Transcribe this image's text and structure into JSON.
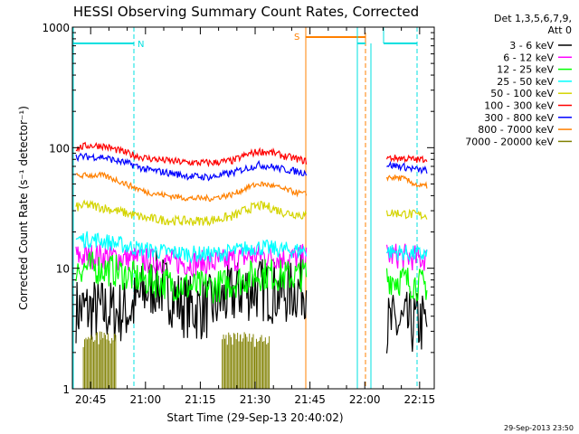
{
  "chart_data": {
    "type": "line",
    "title": "HESSI Observing Summary Count Rates, Corrected",
    "xlabel": "Start Time (29-Sep-13 20:40:02)",
    "ylabel": "Corrected Count Rate (s⁻¹ detector⁻¹)",
    "yscale": "log",
    "ylim": [
      1,
      1000
    ],
    "xlim_minutes": [
      40,
      139
    ],
    "x_ticks": [
      {
        "label": "20:45",
        "t": 45
      },
      {
        "label": "21:00",
        "t": 60
      },
      {
        "label": "21:15",
        "t": 75
      },
      {
        "label": "21:30",
        "t": 90
      },
      {
        "label": "21:45",
        "t": 105
      },
      {
        "label": "22:00",
        "t": 120
      },
      {
        "label": "22:15",
        "t": 135
      }
    ],
    "y_ticks": [
      {
        "label": "1",
        "v": 1
      },
      {
        "label": "10",
        "v": 10
      },
      {
        "label": "100",
        "v": 100
      },
      {
        "label": "1000",
        "v": 1000
      }
    ],
    "grid": false,
    "legend_position": "right",
    "legend_header": [
      "Det 1,3,5,6,7,9,",
      "Att 0"
    ],
    "data_gap_minutes": [
      104,
      126
    ],
    "series": [
      {
        "name": "3 - 6 keV",
        "color": "#000000",
        "points": [
          [
            41,
            4.5
          ],
          [
            47,
            4.5
          ],
          [
            52,
            4.3
          ],
          [
            56,
            4.5
          ],
          [
            60,
            6.5
          ],
          [
            63,
            7.5
          ],
          [
            66,
            6.5
          ],
          [
            70,
            5.0
          ],
          [
            74,
            4.6
          ],
          [
            78,
            4.8
          ],
          [
            82,
            5.6
          ],
          [
            86,
            6.5
          ],
          [
            90,
            6.8
          ],
          [
            94,
            6.5
          ],
          [
            98,
            6.2
          ],
          [
            102,
            6.8
          ],
          [
            104,
            7.3
          ],
          [
            126,
            3.3
          ],
          [
            130,
            3.4
          ],
          [
            135,
            3.5
          ],
          [
            137,
            3.5
          ]
        ]
      },
      {
        "name": "6 - 12 keV",
        "color": "#ff00ff",
        "points": [
          [
            41,
            12.5
          ],
          [
            47,
            12.6
          ],
          [
            52,
            12.4
          ],
          [
            56,
            12.0
          ],
          [
            60,
            11.6
          ],
          [
            66,
            11.4
          ],
          [
            72,
            11.0
          ],
          [
            78,
            11.0
          ],
          [
            82,
            11.4
          ],
          [
            86,
            12.2
          ],
          [
            90,
            12.8
          ],
          [
            94,
            12.6
          ],
          [
            98,
            12.2
          ],
          [
            102,
            12.3
          ],
          [
            104,
            12.4
          ],
          [
            126,
            12.8
          ],
          [
            130,
            12.6
          ],
          [
            135,
            12.0
          ],
          [
            137,
            12.0
          ]
        ]
      },
      {
        "name": "12 - 25 keV",
        "color": "#00ff00",
        "points": [
          [
            41,
            10.2
          ],
          [
            47,
            10.0
          ],
          [
            52,
            9.5
          ],
          [
            56,
            8.5
          ],
          [
            60,
            8.0
          ],
          [
            66,
            7.5
          ],
          [
            72,
            7.0
          ],
          [
            78,
            7.0
          ],
          [
            82,
            7.3
          ],
          [
            86,
            8.0
          ],
          [
            90,
            8.8
          ],
          [
            94,
            9.0
          ],
          [
            98,
            8.6
          ],
          [
            102,
            8.7
          ],
          [
            104,
            9.0
          ],
          [
            126,
            8.4
          ],
          [
            130,
            8.0
          ],
          [
            135,
            7.3
          ],
          [
            137,
            7.2
          ]
        ]
      },
      {
        "name": "25 - 50 keV",
        "color": "#00ffff",
        "points": [
          [
            41,
            17.5
          ],
          [
            47,
            17.2
          ],
          [
            52,
            16.0
          ],
          [
            56,
            15.0
          ],
          [
            60,
            14.2
          ],
          [
            66,
            13.6
          ],
          [
            72,
            13.2
          ],
          [
            78,
            13.0
          ],
          [
            82,
            13.4
          ],
          [
            86,
            14.2
          ],
          [
            90,
            15.0
          ],
          [
            94,
            14.6
          ],
          [
            98,
            14.2
          ],
          [
            102,
            14.0
          ],
          [
            104,
            14.2
          ],
          [
            126,
            13.8
          ],
          [
            130,
            13.5
          ],
          [
            135,
            13.0
          ],
          [
            137,
            13.0
          ]
        ]
      },
      {
        "name": "50 - 100 keV",
        "color": "#d4d400",
        "points": [
          [
            41,
            32
          ],
          [
            44,
            33.5
          ],
          [
            48,
            32
          ],
          [
            52,
            30
          ],
          [
            56,
            28
          ],
          [
            60,
            26
          ],
          [
            66,
            25
          ],
          [
            72,
            24.5
          ],
          [
            78,
            25
          ],
          [
            84,
            27
          ],
          [
            88,
            31
          ],
          [
            91,
            33
          ],
          [
            94,
            32
          ],
          [
            98,
            29
          ],
          [
            102,
            28
          ],
          [
            104,
            27
          ],
          [
            126,
            29
          ],
          [
            130,
            28.5
          ],
          [
            135,
            27.5
          ],
          [
            137,
            27.5
          ]
        ]
      },
      {
        "name": "100 - 300 keV",
        "color": "#ff0000",
        "points": [
          [
            41,
            98
          ],
          [
            44,
            104
          ],
          [
            48,
            104
          ],
          [
            52,
            96
          ],
          [
            56,
            88
          ],
          [
            60,
            82
          ],
          [
            66,
            78
          ],
          [
            72,
            75
          ],
          [
            78,
            75
          ],
          [
            84,
            78
          ],
          [
            88,
            88
          ],
          [
            91,
            93
          ],
          [
            94,
            92
          ],
          [
            98,
            85
          ],
          [
            102,
            80
          ],
          [
            104,
            77
          ],
          [
            126,
            82
          ],
          [
            130,
            82
          ],
          [
            135,
            79
          ],
          [
            137,
            82
          ]
        ]
      },
      {
        "name": "300 - 800 keV",
        "color": "#0000ff",
        "points": [
          [
            41,
            84
          ],
          [
            44,
            84
          ],
          [
            48,
            84
          ],
          [
            52,
            78
          ],
          [
            56,
            73
          ],
          [
            60,
            66
          ],
          [
            66,
            62
          ],
          [
            72,
            58
          ],
          [
            78,
            57
          ],
          [
            84,
            62
          ],
          [
            88,
            68
          ],
          [
            91,
            72
          ],
          [
            94,
            70
          ],
          [
            98,
            66
          ],
          [
            102,
            63
          ],
          [
            104,
            62
          ],
          [
            126,
            72
          ],
          [
            130,
            70
          ],
          [
            135,
            65
          ],
          [
            137,
            65
          ]
        ]
      },
      {
        "name": "800 - 7000 keV",
        "color": "#ff8000",
        "points": [
          [
            41,
            58
          ],
          [
            44,
            59
          ],
          [
            48,
            59
          ],
          [
            52,
            54
          ],
          [
            56,
            48
          ],
          [
            60,
            43
          ],
          [
            66,
            40
          ],
          [
            72,
            38
          ],
          [
            78,
            38
          ],
          [
            84,
            41
          ],
          [
            88,
            47
          ],
          [
            91,
            50
          ],
          [
            94,
            49
          ],
          [
            98,
            45
          ],
          [
            102,
            42
          ],
          [
            104,
            41
          ],
          [
            126,
            57
          ],
          [
            130,
            56
          ],
          [
            135,
            48
          ],
          [
            137,
            48
          ]
        ]
      },
      {
        "name": "7000 - 20000 keV",
        "color": "#808000",
        "points": [
          [
            43,
            2.5
          ],
          [
            48,
            2.8
          ],
          [
            52,
            2.6
          ],
          [
            81,
            2.6
          ],
          [
            86,
            2.8
          ],
          [
            90,
            2.6
          ],
          [
            94,
            2.7
          ]
        ]
      }
    ],
    "annotations": [
      {
        "text": "N",
        "color": "#00e0e0"
      },
      {
        "text": "S",
        "color": "#ff8000"
      }
    ],
    "timestamp": "29-Sep-2013 23:50"
  }
}
